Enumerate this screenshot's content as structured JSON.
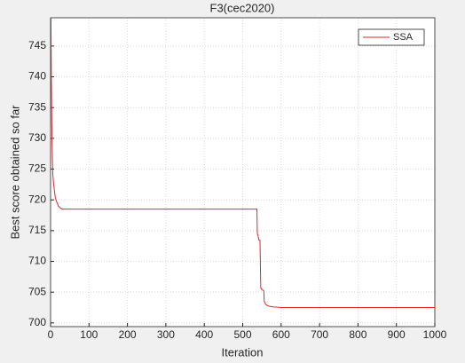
{
  "chart_data": {
    "type": "line",
    "title": "F3(cec2020)",
    "x_label": "Iteration",
    "y_label": "Best score obtained so far",
    "x": [
      1,
      2,
      3,
      4,
      5,
      6,
      8,
      10,
      12,
      15,
      18,
      20,
      25,
      30,
      40,
      100,
      535,
      537,
      538,
      540,
      542,
      545,
      547,
      548,
      550,
      555,
      556,
      560,
      565,
      570,
      580,
      590,
      600,
      1000
    ],
    "series": [
      {
        "name": "SSA",
        "color": "#e8222a",
        "values": [
          749.5,
          740,
          733,
          729,
          726,
          724,
          722.5,
          721.5,
          720.5,
          719.8,
          719.4,
          719,
          718.7,
          718.5,
          718.5,
          718.5,
          718.5,
          718.5,
          714.5,
          714.2,
          713.5,
          713.4,
          705.8,
          705.5,
          705.5,
          705.2,
          703.5,
          703,
          702.8,
          702.7,
          702.6,
          702.55,
          702.5,
          702.5
        ]
      }
    ],
    "xlim": [
      0,
      1000
    ],
    "xticks": [
      0,
      100,
      200,
      300,
      400,
      500,
      600,
      700,
      800,
      900,
      1000
    ],
    "ylim": [
      699.4,
      749.6
    ],
    "yticks": [
      700,
      705,
      710,
      715,
      720,
      725,
      730,
      735,
      740,
      745
    ],
    "grid": true,
    "legend": "upper right"
  }
}
